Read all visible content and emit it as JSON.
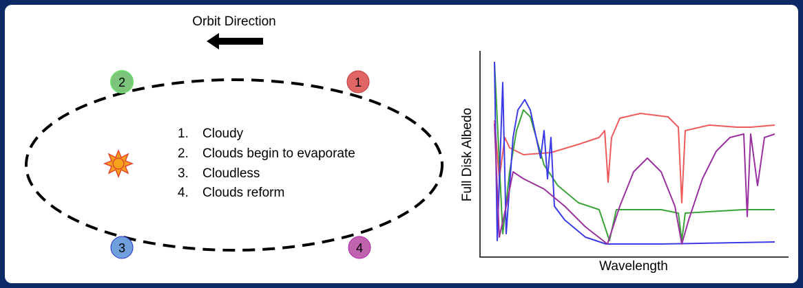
{
  "orbit": {
    "direction_label": "Orbit Direction",
    "nodes": [
      {
        "label": "1"
      },
      {
        "label": "2"
      },
      {
        "label": "3"
      },
      {
        "label": "4"
      }
    ]
  },
  "legend": {
    "items": [
      {
        "number": "1.",
        "text": "Cloudy"
      },
      {
        "number": "2.",
        "text": "Clouds begin to evaporate"
      },
      {
        "number": "3.",
        "text": "Cloudless"
      },
      {
        "number": "4.",
        "text": "Clouds reform"
      }
    ]
  },
  "spectrum": {
    "y_label": "Full Disk Albedo",
    "x_label": "Wavelength"
  }
}
